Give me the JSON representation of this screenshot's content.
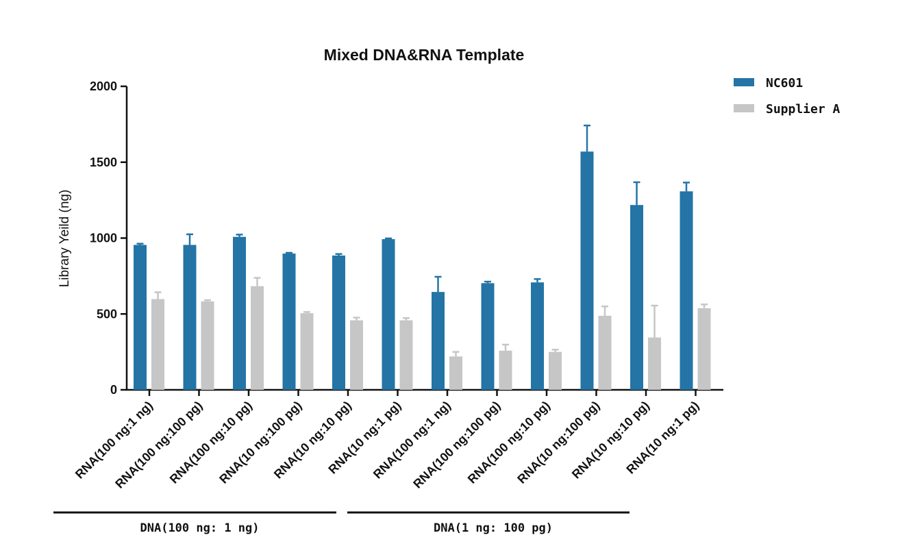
{
  "chart_data": {
    "type": "bar",
    "title": "Mixed DNA&RNA Template",
    "xlabel": "",
    "ylabel": "Library Yeild (ng)",
    "ylim": [
      0,
      2000
    ],
    "yticks": [
      0,
      500,
      1000,
      1500,
      2000
    ],
    "grid": false,
    "legend_position": "top-right",
    "categories": [
      "RNA(100 ng:1 ng)",
      "RNA(100 ng:100 pg)",
      "RNA(100 ng:10 pg)",
      "RNA(10 ng:100 pg)",
      "RNA(10 ng:10 pg)",
      "RNA(10 ng:1 pg)",
      "RNA(100 ng:1 ng)",
      "RNA(100 ng:100 pg)",
      "RNA(100 ng:10 pg)",
      "RNA(10 ng:100 pg)",
      "RNA(10 ng:10 pg)",
      "RNA(10 ng:1 pg)"
    ],
    "series": [
      {
        "name": "NC601",
        "color": "#2474a6",
        "values": [
          955,
          955,
          1008,
          898,
          885,
          993,
          645,
          703,
          708,
          1570,
          1218,
          1308
        ],
        "errors": [
          8,
          70,
          15,
          5,
          10,
          5,
          100,
          10,
          22,
          172,
          150,
          58
        ]
      },
      {
        "name": "Supplier A",
        "color": "#c6c6c6",
        "values": [
          598,
          583,
          683,
          505,
          458,
          458,
          220,
          258,
          250,
          488,
          345,
          538
        ],
        "errors": [
          45,
          8,
          55,
          8,
          18,
          15,
          30,
          40,
          15,
          62,
          210,
          25
        ]
      }
    ],
    "groups": [
      {
        "label": "DNA(100 ng: 1 ng)",
        "start": 0,
        "end": 5
      },
      {
        "label": "DNA(1 ng: 100 pg)",
        "start": 6,
        "end": 11
      }
    ]
  }
}
